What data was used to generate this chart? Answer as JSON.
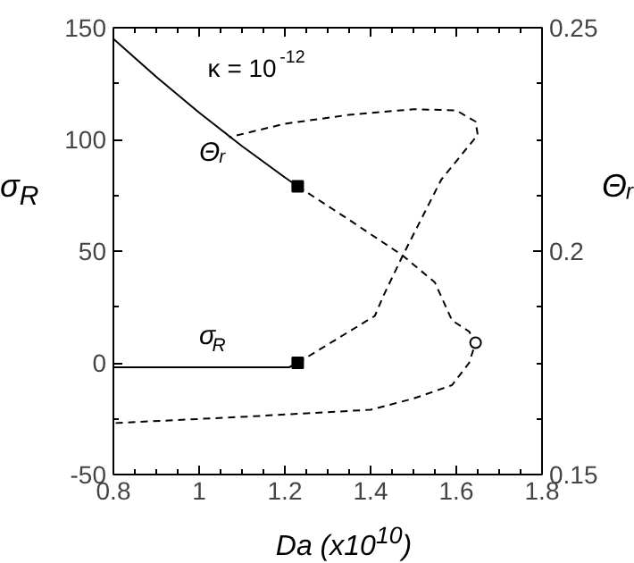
{
  "chart_data": {
    "type": "line",
    "xlabel": "Da (x10$^{10}$)",
    "ylabel": "σ$_{R}$",
    "y2label": "Θᵣ",
    "xlim": [
      0.8,
      1.8
    ],
    "xticks": [
      0.8,
      1,
      1.2,
      1.4,
      1.6,
      1.8
    ],
    "ylim": [
      -50,
      150
    ],
    "yticks": [
      -50,
      0,
      50,
      100,
      150
    ],
    "y2lim": [
      0.15,
      0.25
    ],
    "y2ticks": [
      0.15,
      0.2,
      0.25
    ],
    "grid": false,
    "annotations": [
      "κ = 10$^{-12}$",
      "Θᵣ",
      "σ$_{R}$"
    ],
    "series": [
      {
        "color": "#000000",
        "axis": "y2",
        "line_style": "solid",
        "x": [
          0.8,
          0.9,
          1.0,
          1.1,
          1.2,
          1.23
        ],
        "values": [
          0.2475,
          0.239,
          0.231,
          0.2235,
          0.2165,
          0.2145
        ]
      },
      {
        "color": "#000000",
        "axis": "y2",
        "line_style": "dashed",
        "x": [
          1.23,
          1.35,
          1.475,
          1.55,
          1.59,
          1.63,
          1.645,
          1.63,
          1.59,
          1.5,
          1.4,
          1.12,
          0.8
        ],
        "values": [
          0.2145,
          0.207,
          0.199,
          0.193,
          0.1845,
          0.182,
          0.1795,
          0.175,
          0.17,
          0.167,
          0.1645,
          0.163,
          0.1615
        ]
      },
      {
        "color": "#000000",
        "line_style": "solid",
        "x": [
          0.8,
          1.21,
          1.23
        ],
        "values": [
          -2,
          -2,
          0
        ]
      },
      {
        "color": "#000000",
        "line_style": "dashed",
        "x": [
          1.23,
          1.41,
          1.43,
          1.475,
          1.565,
          1.62,
          1.65,
          1.645,
          1.6,
          1.5,
          1.35,
          1.2,
          1.07
        ],
        "values": [
          0,
          21,
          30,
          48,
          82,
          95,
          102,
          108,
          113,
          113.5,
          111,
          107,
          101
        ]
      },
      {
        "type": "scatter",
        "marker": "square",
        "color": "#000000",
        "x": [
          1.23
        ],
        "values": [
          0
        ]
      },
      {
        "type": "scatter",
        "marker": "square",
        "color": "#000000",
        "axis": "y2",
        "x": [
          1.23
        ],
        "values": [
          0.2145
        ]
      },
      {
        "type": "scatter",
        "marker": "circle",
        "color": "#000000",
        "axis": "y2",
        "x": [
          1.645
        ],
        "values": [
          0.1795
        ]
      }
    ]
  }
}
